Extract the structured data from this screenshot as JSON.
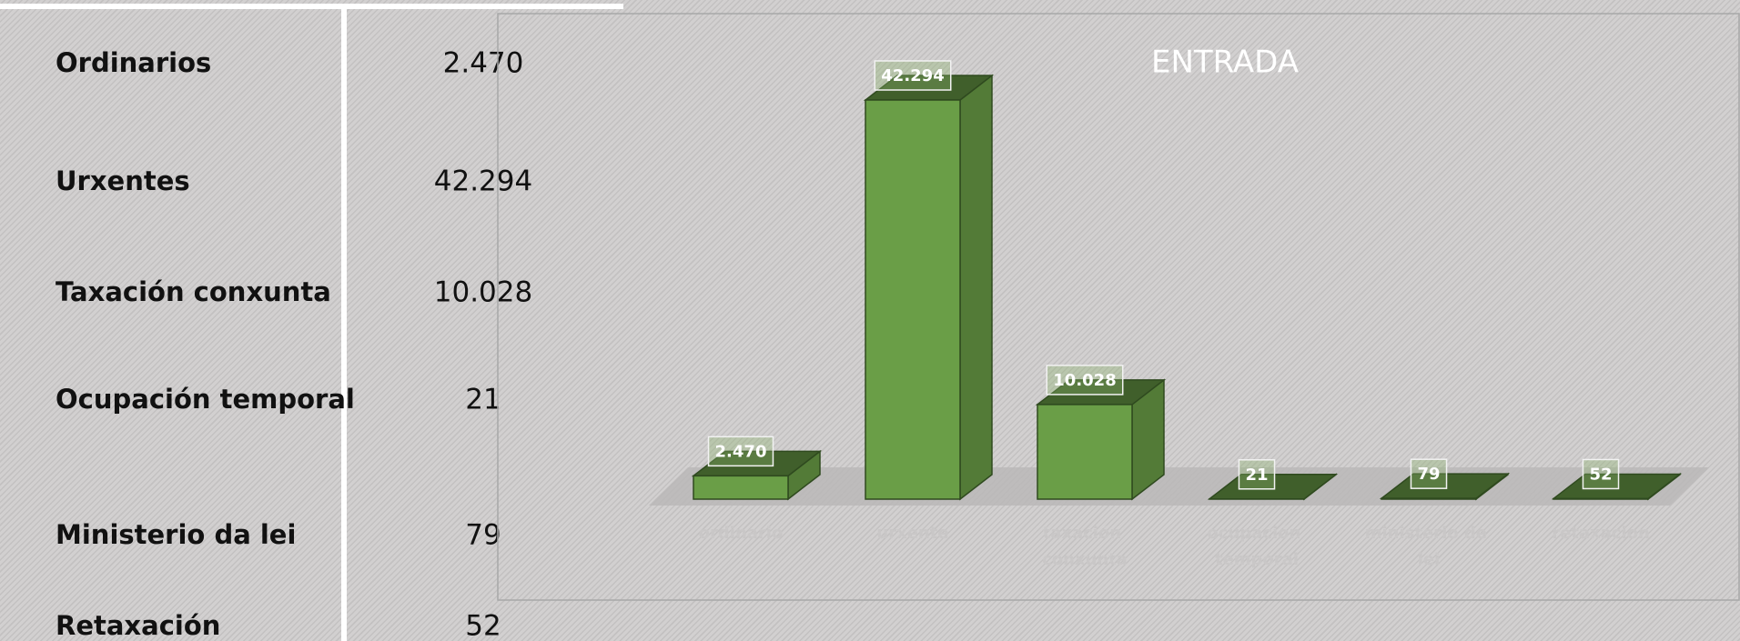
{
  "table": {
    "rows": [
      {
        "label": "Ordinarios",
        "value": "2.470"
      },
      {
        "label": "Urxentes",
        "value": "42.294"
      },
      {
        "label": "Taxación conxunta",
        "value": "10.028"
      },
      {
        "label": "Ocupación temporal",
        "value": "21"
      },
      {
        "label": "Ministerio da lei",
        "value": "79"
      },
      {
        "label": "Retaxación",
        "value": "52"
      }
    ]
  },
  "chart_data": {
    "type": "bar",
    "title": "ENTRADA",
    "categories": [
      "ordinario",
      "urxente",
      "taxación conxunta",
      "ocupación temporal",
      "ministerio de lei",
      "retaxacion"
    ],
    "values": [
      2470,
      42294,
      10028,
      21,
      79,
      52
    ],
    "value_labels": [
      "2.470",
      "42.294",
      "10.028",
      "21",
      "79",
      "52"
    ],
    "color": "#6a9e47"
  }
}
